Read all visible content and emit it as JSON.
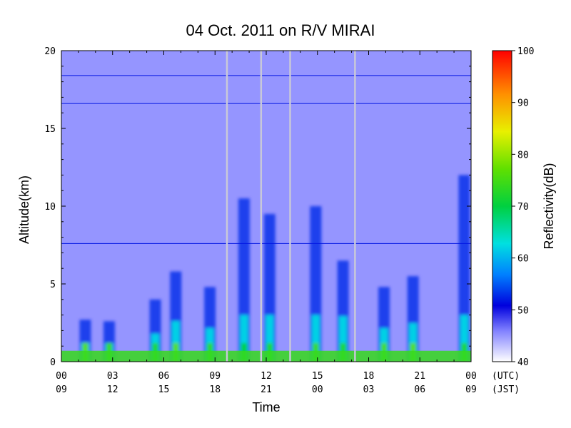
{
  "chart_data": {
    "type": "heatmap",
    "title": "04 Oct. 2011  on R/V MIRAI",
    "xlabel": "Time",
    "ylabel": "Altitude(km)",
    "colorbar_label": "Reflectivity(dB)",
    "xlim": [
      0,
      24
    ],
    "ylim": [
      0,
      20
    ],
    "clim": [
      40,
      100
    ],
    "y_ticks": [
      "0",
      "5",
      "10",
      "15",
      "20"
    ],
    "x_ticks_utc": [
      "00",
      "03",
      "06",
      "09",
      "12",
      "15",
      "18",
      "21",
      "00"
    ],
    "x_ticks_jst": [
      "09",
      "12",
      "15",
      "18",
      "21",
      "00",
      "03",
      "06",
      "09"
    ],
    "x_unit_utc": "(UTC)",
    "x_unit_jst": "(JST)",
    "colorbar_ticks": [
      "40",
      "50",
      "60",
      "70",
      "80",
      "90",
      "100"
    ],
    "background_reflectivity_db": 45,
    "data_gaps_utc_hours": [
      9.7,
      11.7,
      13.4,
      17.2
    ],
    "surface_layer": {
      "altitude_km": [
        0,
        0.7
      ],
      "reflectivity_db": 74
    },
    "horizontal_artifacts_km": [
      18.4,
      16.6,
      7.6
    ],
    "echo_columns": [
      {
        "time_utc": 1.4,
        "top_km": 2.7,
        "peak_db": 76
      },
      {
        "time_utc": 2.8,
        "top_km": 2.6,
        "peak_db": 74
      },
      {
        "time_utc": 5.5,
        "top_km": 4.0,
        "peak_db": 72
      },
      {
        "time_utc": 6.7,
        "top_km": 5.8,
        "peak_db": 76
      },
      {
        "time_utc": 8.7,
        "top_km": 4.8,
        "peak_db": 73
      },
      {
        "time_utc": 10.7,
        "top_km": 10.5,
        "peak_db": 70
      },
      {
        "time_utc": 12.2,
        "top_km": 9.5,
        "peak_db": 72
      },
      {
        "time_utc": 14.9,
        "top_km": 10.0,
        "peak_db": 74
      },
      {
        "time_utc": 16.5,
        "top_km": 6.5,
        "peak_db": 72
      },
      {
        "time_utc": 18.9,
        "top_km": 4.8,
        "peak_db": 75
      },
      {
        "time_utc": 20.6,
        "top_km": 5.5,
        "peak_db": 76
      },
      {
        "time_utc": 23.6,
        "top_km": 12.0,
        "peak_db": 72
      }
    ]
  }
}
